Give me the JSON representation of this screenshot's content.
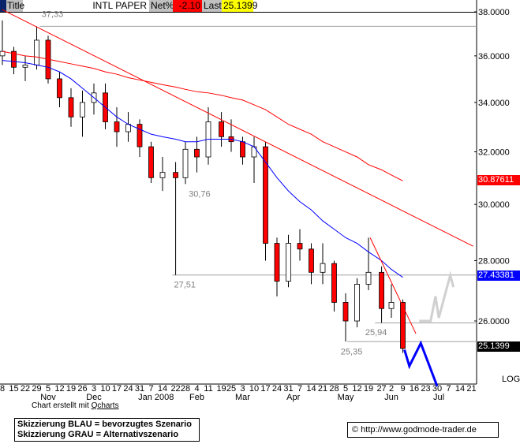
{
  "header": {
    "title_label": "Title",
    "symbol": "INTL PAPER",
    "net_label": "Net%",
    "net_value": "-2.10",
    "last_label": "Last",
    "last_value": "25.1399",
    "colors": {
      "net_bg": "#ff0000",
      "last_bg": "#ffff00",
      "left_strip": "#0a246a"
    }
  },
  "chart_data": {
    "type": "candlestick",
    "scale": "log",
    "ylim": [
      24.0,
      38.2
    ],
    "y_ticks": [
      {
        "value": 38,
        "label": "38.0000"
      },
      {
        "value": 36,
        "label": "36.0000"
      },
      {
        "value": 34,
        "label": "34.0000"
      },
      {
        "value": 32,
        "label": "32.0000"
      },
      {
        "value": 30,
        "label": "30.0000"
      },
      {
        "value": 28,
        "label": "28.0000"
      },
      {
        "value": 26,
        "label": "26.0000"
      }
    ],
    "scale_label": "LOG",
    "x_ticks": [
      {
        "date": "2007-10-08",
        "label": "8"
      },
      {
        "date": "2007-10-15",
        "label": "15"
      },
      {
        "date": "2007-10-22",
        "label": "22"
      },
      {
        "date": "2007-10-29",
        "label": "29"
      },
      {
        "date": "2007-11-05",
        "label": "5"
      },
      {
        "date": "2007-11-12",
        "label": "12"
      },
      {
        "date": "2007-11-19",
        "label": "19"
      },
      {
        "date": "2007-11-26",
        "label": "26"
      },
      {
        "date": "2007-12-03",
        "label": "3"
      },
      {
        "date": "2007-12-10",
        "label": "10"
      },
      {
        "date": "2007-12-17",
        "label": "17"
      },
      {
        "date": "2007-12-24",
        "label": "24"
      },
      {
        "date": "2007-12-31",
        "label": "31"
      },
      {
        "date": "2008-01-07",
        "label": "7"
      },
      {
        "date": "2008-01-14",
        "label": "14"
      },
      {
        "date": "2008-01-22",
        "label": "22"
      },
      {
        "date": "2008-01-28",
        "label": "28"
      },
      {
        "date": "2008-02-04",
        "label": "4"
      },
      {
        "date": "2008-02-11",
        "label": "11"
      },
      {
        "date": "2008-02-19",
        "label": "19"
      },
      {
        "date": "2008-02-25",
        "label": "25"
      },
      {
        "date": "2008-03-03",
        "label": "3"
      },
      {
        "date": "2008-03-10",
        "label": "10"
      },
      {
        "date": "2008-03-17",
        "label": "17"
      },
      {
        "date": "2008-03-24",
        "label": "24"
      },
      {
        "date": "2008-03-31",
        "label": "31"
      },
      {
        "date": "2008-04-07",
        "label": "7"
      },
      {
        "date": "2008-04-14",
        "label": "14"
      },
      {
        "date": "2008-04-21",
        "label": "21"
      },
      {
        "date": "2008-04-28",
        "label": "28"
      },
      {
        "date": "2008-05-05",
        "label": "5"
      },
      {
        "date": "2008-05-12",
        "label": "12"
      },
      {
        "date": "2008-05-19",
        "label": "19"
      },
      {
        "date": "2008-05-27",
        "label": "27"
      },
      {
        "date": "2008-06-02",
        "label": "2"
      },
      {
        "date": "2008-06-09",
        "label": "9"
      },
      {
        "date": "2008-06-16",
        "label": "16"
      },
      {
        "date": "2008-06-23",
        "label": "23"
      },
      {
        "date": "2008-06-30",
        "label": "30"
      },
      {
        "date": "2008-07-07",
        "label": "7"
      },
      {
        "date": "2008-07-14",
        "label": "14"
      },
      {
        "date": "2008-07-21",
        "label": "21"
      }
    ],
    "month_labels": [
      {
        "date": "2007-11-05",
        "label": "Nov"
      },
      {
        "date": "2007-12-03",
        "label": "Dec"
      },
      {
        "date": "2008-01-10",
        "label": "Jan 2008"
      },
      {
        "date": "2008-02-04",
        "label": "Feb"
      },
      {
        "date": "2008-03-03",
        "label": "Mar"
      },
      {
        "date": "2008-04-03",
        "label": "Apr"
      },
      {
        "date": "2008-05-05",
        "label": "May"
      },
      {
        "date": "2008-06-02",
        "label": "Jun"
      },
      {
        "date": "2008-07-01",
        "label": "Jul"
      }
    ],
    "candles": [
      {
        "date": "2007-10-08",
        "o": 36.0,
        "h": 37.6,
        "l": 35.6,
        "c": 36.2
      },
      {
        "date": "2007-10-15",
        "o": 36.2,
        "h": 36.4,
        "l": 35.2,
        "c": 35.5
      },
      {
        "date": "2007-10-22",
        "o": 35.5,
        "h": 36.0,
        "l": 34.9,
        "c": 35.6
      },
      {
        "date": "2007-10-29",
        "o": 35.6,
        "h": 37.33,
        "l": 35.4,
        "c": 36.7
      },
      {
        "date": "2007-11-05",
        "o": 36.7,
        "h": 36.9,
        "l": 34.8,
        "c": 35.0
      },
      {
        "date": "2007-11-12",
        "o": 35.0,
        "h": 35.3,
        "l": 33.8,
        "c": 34.2
      },
      {
        "date": "2007-11-19",
        "o": 34.2,
        "h": 34.6,
        "l": 33.0,
        "c": 33.4
      },
      {
        "date": "2007-11-26",
        "o": 33.4,
        "h": 34.5,
        "l": 32.6,
        "c": 34.0
      },
      {
        "date": "2007-12-03",
        "o": 34.0,
        "h": 34.8,
        "l": 33.5,
        "c": 34.4
      },
      {
        "date": "2007-12-10",
        "o": 34.4,
        "h": 34.8,
        "l": 32.9,
        "c": 33.2
      },
      {
        "date": "2007-12-17",
        "o": 33.2,
        "h": 33.8,
        "l": 32.2,
        "c": 32.8
      },
      {
        "date": "2007-12-24",
        "o": 32.8,
        "h": 33.6,
        "l": 32.4,
        "c": 33.1
      },
      {
        "date": "2007-12-31",
        "o": 33.1,
        "h": 33.3,
        "l": 31.8,
        "c": 32.2
      },
      {
        "date": "2008-01-07",
        "o": 32.2,
        "h": 32.4,
        "l": 30.8,
        "c": 31.0
      },
      {
        "date": "2008-01-14",
        "o": 31.0,
        "h": 31.8,
        "l": 30.5,
        "c": 31.2
      },
      {
        "date": "2008-01-22",
        "o": 31.2,
        "h": 31.6,
        "l": 27.51,
        "c": 31.0
      },
      {
        "date": "2008-01-28",
        "o": 31.0,
        "h": 32.4,
        "l": 30.76,
        "c": 32.1
      },
      {
        "date": "2008-02-04",
        "o": 32.1,
        "h": 32.6,
        "l": 31.2,
        "c": 31.8
      },
      {
        "date": "2008-02-11",
        "o": 31.8,
        "h": 33.8,
        "l": 31.5,
        "c": 33.2
      },
      {
        "date": "2008-02-19",
        "o": 33.2,
        "h": 33.6,
        "l": 32.2,
        "c": 32.6
      },
      {
        "date": "2008-02-25",
        "o": 32.6,
        "h": 33.3,
        "l": 32.0,
        "c": 32.4
      },
      {
        "date": "2008-03-03",
        "o": 32.4,
        "h": 32.6,
        "l": 31.5,
        "c": 31.8
      },
      {
        "date": "2008-03-10",
        "o": 31.8,
        "h": 32.6,
        "l": 30.8,
        "c": 32.2
      },
      {
        "date": "2008-03-17",
        "o": 32.2,
        "h": 32.4,
        "l": 28.0,
        "c": 28.6
      },
      {
        "date": "2008-03-24",
        "o": 28.6,
        "h": 28.8,
        "l": 26.8,
        "c": 27.3
      },
      {
        "date": "2008-03-31",
        "o": 27.3,
        "h": 28.9,
        "l": 27.1,
        "c": 28.6
      },
      {
        "date": "2008-04-07",
        "o": 28.6,
        "h": 29.1,
        "l": 28.0,
        "c": 28.4
      },
      {
        "date": "2008-04-14",
        "o": 28.4,
        "h": 28.6,
        "l": 27.2,
        "c": 27.6
      },
      {
        "date": "2008-04-21",
        "o": 27.6,
        "h": 28.6,
        "l": 27.2,
        "c": 27.9
      },
      {
        "date": "2008-04-28",
        "o": 27.9,
        "h": 28.0,
        "l": 26.3,
        "c": 26.6
      },
      {
        "date": "2008-05-05",
        "o": 26.6,
        "h": 26.9,
        "l": 25.35,
        "c": 26.0
      },
      {
        "date": "2008-05-12",
        "o": 26.0,
        "h": 27.4,
        "l": 25.8,
        "c": 27.2
      },
      {
        "date": "2008-05-19",
        "o": 27.2,
        "h": 28.8,
        "l": 27.0,
        "c": 27.6
      },
      {
        "date": "2008-05-27",
        "o": 27.6,
        "h": 27.8,
        "l": 25.94,
        "c": 26.4
      },
      {
        "date": "2008-06-02",
        "o": 26.4,
        "h": 27.2,
        "l": 26.1,
        "c": 26.6
      },
      {
        "date": "2008-06-09",
        "o": 26.6,
        "h": 26.7,
        "l": 25.0,
        "c": 25.14
      }
    ],
    "moving_averages": [
      {
        "color": "#0000ff",
        "last": "27.43381",
        "values": [
          35.8,
          35.75,
          35.7,
          35.6,
          35.5,
          35.3,
          35.0,
          34.6,
          34.2,
          33.8,
          33.4,
          33.1,
          32.9,
          32.7,
          32.6,
          32.5,
          32.4,
          32.4,
          32.5,
          32.5,
          32.5,
          32.4,
          32.2,
          31.6,
          31.0,
          30.5,
          30.1,
          29.8,
          29.4,
          29.1,
          28.8,
          28.6,
          28.3,
          28.0,
          27.7,
          27.43
        ]
      },
      {
        "color": "#ff0000",
        "last": "30.87611",
        "values": [
          36.2,
          36.1,
          36.0,
          35.95,
          35.85,
          35.75,
          35.65,
          35.55,
          35.45,
          35.3,
          35.2,
          35.05,
          34.95,
          34.85,
          34.75,
          34.65,
          34.55,
          34.45,
          34.4,
          34.3,
          34.2,
          34.1,
          33.9,
          33.7,
          33.4,
          33.1,
          32.9,
          32.7,
          32.4,
          32.2,
          32.0,
          31.8,
          31.5,
          31.3,
          31.1,
          30.88
        ]
      }
    ],
    "last_price_label": "25.1399",
    "trendlines": [
      {
        "color": "#ff0000",
        "from": {
          "date": "2007-10-08",
          "price": 38.1
        },
        "to": {
          "date": "2008-07-22",
          "price": 28.5
        }
      },
      {
        "color": "#ff0000",
        "from": {
          "date": "2008-05-20",
          "price": 28.8
        },
        "to": {
          "date": "2008-06-17",
          "price": 25.6
        }
      }
    ],
    "levels": [
      {
        "price": 37.33,
        "from": "2007-10-31",
        "label": "37,33",
        "label_date": "2007-11-01",
        "label_price": 37.9
      },
      {
        "price": 27.51,
        "from": "2008-01-20",
        "label": "27,51",
        "label_date": "2008-01-21",
        "label_price": 27.2
      },
      {
        "price": 25.94,
        "from": "2008-05-23",
        "label": "25,94",
        "label_date": "2008-05-17",
        "label_price": 25.65
      },
      {
        "price": 25.35,
        "from": "2008-05-06",
        "label": "25,35",
        "label_date": "2008-05-02",
        "label_price": 25.05
      }
    ],
    "annotations": [
      {
        "label": "30,76",
        "date": "2008-01-30",
        "price": 30.4
      }
    ],
    "scenarios": [
      {
        "name": "BLAU",
        "color": "#0000ff",
        "points": [
          [
            "2008-06-10",
            25.1
          ],
          [
            "2008-06-13",
            24.6
          ],
          [
            "2008-06-20",
            25.3
          ],
          [
            "2008-06-30",
            24.0
          ]
        ]
      },
      {
        "name": "GRAU",
        "color": "#d0d0d0",
        "points": [
          [
            "2008-06-19",
            26.0
          ],
          [
            "2008-06-26",
            26.0
          ],
          [
            "2008-06-29",
            26.8
          ],
          [
            "2008-07-01",
            26.1
          ],
          [
            "2008-07-08",
            27.5
          ],
          [
            "2008-07-10",
            27.1
          ]
        ]
      }
    ]
  },
  "footer": {
    "credit_prefix": "Chart erstellt mit",
    "credit_link": "Qcharts",
    "legend_line1": "Skizzierung BLAU = bevorzugtes Szenario",
    "legend_line2": "Skizzierung GRAU = Alternativszenario",
    "copyright": "© http://www.godmode-trader.de"
  }
}
